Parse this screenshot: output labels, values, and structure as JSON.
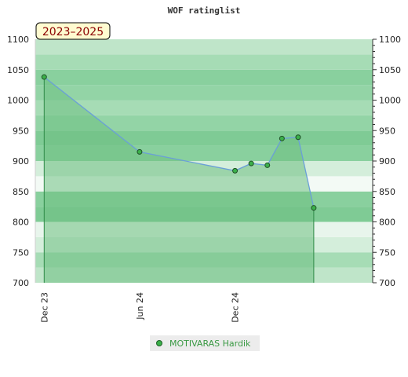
{
  "chart_data": {
    "type": "line",
    "title": "WOF ratinglist",
    "date_range_label": "2023–2025",
    "xlabel": "",
    "ylabel": "",
    "ylim": [
      700,
      1100
    ],
    "yticks": [
      700,
      750,
      800,
      850,
      900,
      950,
      1000,
      1050,
      1100
    ],
    "xlim": [
      "2023-11-14",
      "2025-08-22"
    ],
    "xticks": [
      {
        "date": "2023-12-01",
        "label": "Dec 23"
      },
      {
        "date": "2024-06-01",
        "label": "Jun 24"
      },
      {
        "date": "2024-12-01",
        "label": "Dec 24"
      }
    ],
    "grid": true,
    "legend_position": "bottom-center",
    "colors": {
      "area": "#6dbf82",
      "line": "#6a9fd8",
      "marker": "#3bb04a",
      "band_dark": "#7ccb92",
      "band_light": "#eef8f0"
    },
    "series": [
      {
        "name": "MOTIVARAS Hardik",
        "points": [
          {
            "x": "2023-12-01",
            "y": 1038
          },
          {
            "x": "2024-06-01",
            "y": 915
          },
          {
            "x": "2024-12-01",
            "y": 884
          },
          {
            "x": "2025-01-01",
            "y": 896
          },
          {
            "x": "2025-02-01",
            "y": 893
          },
          {
            "x": "2025-03-01",
            "y": 937
          },
          {
            "x": "2025-04-01",
            "y": 939
          },
          {
            "x": "2025-05-01",
            "y": 823
          }
        ]
      }
    ]
  },
  "legend": {
    "label": "MOTIVARAS Hardik"
  }
}
